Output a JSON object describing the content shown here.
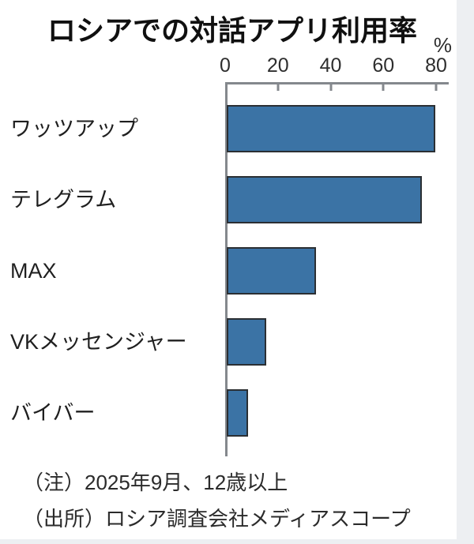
{
  "title": "ロシアでの対話アプリ利用率",
  "unit_label": "%",
  "notes": {
    "note": "（注）2025年9月、12歳以上",
    "source": "（出所）ロシア調査会社メディアスコープ"
  },
  "colors": {
    "bar_fill": "#3b73a5",
    "bar_border": "#2b2f33",
    "axis": "#84888d",
    "text": "#1f1f1f",
    "background": "#ffffff",
    "edge_strip": "#edeff2"
  },
  "chart_data": {
    "type": "bar",
    "orientation": "horizontal",
    "title": "ロシアでの対話アプリ利用率",
    "unit": "%",
    "categories": [
      "ワッツアップ",
      "テレグラム",
      "MAX",
      "VKメッセンジャー",
      "バイバー"
    ],
    "values": [
      79,
      74,
      34,
      15,
      8
    ],
    "xlim": [
      0,
      80
    ],
    "xticks": [
      0,
      20,
      40,
      60,
      80
    ],
    "grid": false,
    "legend": false,
    "note": "（注）2025年9月、12歳以上",
    "source": "（出所）ロシア調査会社メディアスコープ"
  }
}
